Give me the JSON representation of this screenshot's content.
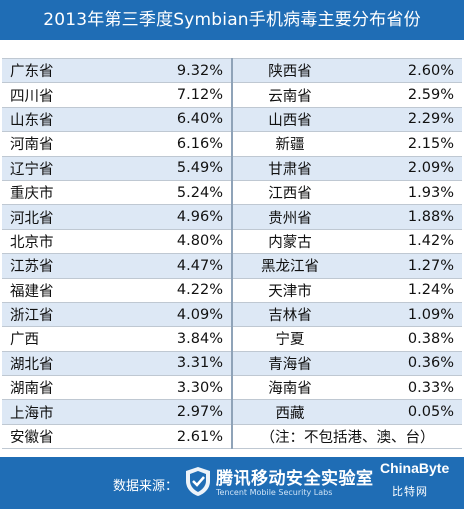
{
  "title": "2013年第三季度Symbian手机病毒主要分布省份",
  "chart_data": {
    "type": "table",
    "title": "2013年第三季度Symbian手机病毒主要分布省份",
    "rows": [
      {
        "p1": "广东省",
        "v1": "9.32%",
        "p2": "陕西省",
        "v2": "2.60%"
      },
      {
        "p1": "四川省",
        "v1": "7.12%",
        "p2": "云南省",
        "v2": "2.59%"
      },
      {
        "p1": "山东省",
        "v1": "6.40%",
        "p2": "山西省",
        "v2": "2.29%"
      },
      {
        "p1": "河南省",
        "v1": "6.16%",
        "p2": "新疆",
        "v2": "2.15%"
      },
      {
        "p1": "辽宁省",
        "v1": "5.49%",
        "p2": "甘肃省",
        "v2": "2.09%"
      },
      {
        "p1": "重庆市",
        "v1": "5.24%",
        "p2": "江西省",
        "v2": "1.93%"
      },
      {
        "p1": "河北省",
        "v1": "4.96%",
        "p2": "贵州省",
        "v2": "1.88%"
      },
      {
        "p1": "北京市",
        "v1": "4.80%",
        "p2": "内蒙古",
        "v2": "1.42%"
      },
      {
        "p1": "江苏省",
        "v1": "4.47%",
        "p2": "黑龙江省",
        "v2": "1.27%"
      },
      {
        "p1": "福建省",
        "v1": "4.22%",
        "p2": "天津市",
        "v2": "1.24%"
      },
      {
        "p1": "浙江省",
        "v1": "4.09%",
        "p2": "吉林省",
        "v2": "1.09%"
      },
      {
        "p1": "广西",
        "v1": "3.84%",
        "p2": "宁夏",
        "v2": "0.38%"
      },
      {
        "p1": "湖北省",
        "v1": "3.31%",
        "p2": "青海省",
        "v2": "0.36%"
      },
      {
        "p1": "湖南省",
        "v1": "3.30%",
        "p2": "海南省",
        "v2": "0.33%"
      },
      {
        "p1": "上海市",
        "v1": "2.97%",
        "p2": "西藏",
        "v2": "0.05%"
      }
    ],
    "last_row": {
      "p1": "安徽省",
      "v1": "2.61%",
      "note": "（注：不包括港、澳、台）"
    }
  },
  "footer": {
    "source_label": "数据来源：",
    "lab_name": "腾讯移动安全实验室",
    "lab_subtitle": "Tencent Mobile Security Labs",
    "watermark": "ChinaByte",
    "watermark_sub": "比特网"
  },
  "colors": {
    "header_bg": "#1f6db5",
    "row_alt": "#dde8f5",
    "row_plain": "#ffffff"
  }
}
